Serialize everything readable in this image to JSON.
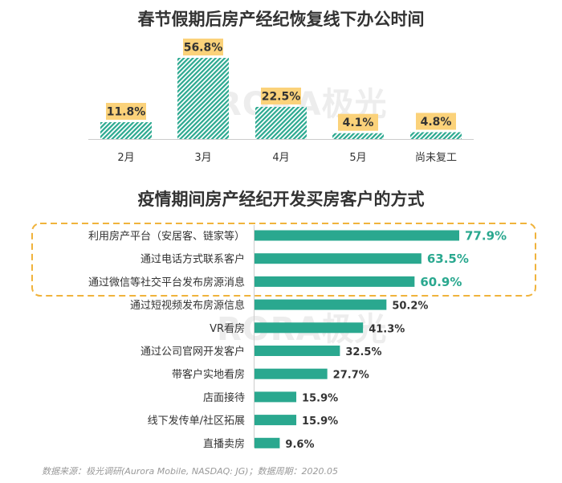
{
  "chart_data": [
    {
      "type": "bar",
      "title": "春节假期后房产经纪恢复线下办公时间",
      "categories": [
        "2月",
        "3月",
        "4月",
        "5月",
        "尚未复工"
      ],
      "values": [
        11.8,
        56.8,
        22.5,
        4.1,
        4.8
      ],
      "value_labels": [
        "11.8%",
        "56.8%",
        "22.5%",
        "4.1%",
        "4.8%"
      ],
      "colors": {
        "bar": "#2aa88f",
        "label_bg": "#fbd27a"
      }
    },
    {
      "type": "bar",
      "orientation": "horizontal",
      "title": "疫情期间房产经纪开发买房客户的方式",
      "categories": [
        "利用房产平台（安居客、链家等）",
        "通过电话方式联系客户",
        "通过微信等社交平台发布房源消息",
        "通过短视频发布房源信息",
        "VR看房",
        "通过公司官网开发客户",
        "带客户实地看房",
        "店面接待",
        "线下发传单/社区拓展",
        "直播卖房"
      ],
      "values": [
        77.9,
        63.5,
        60.9,
        50.2,
        41.3,
        32.5,
        27.7,
        15.9,
        15.9,
        9.6
      ],
      "value_labels": [
        "77.9%",
        "63.5%",
        "60.9%",
        "50.2%",
        "41.3%",
        "32.5%",
        "27.7%",
        "15.9%",
        "15.9%",
        "9.6%"
      ],
      "highlighted_count": 3,
      "colors": {
        "bar": "#2aa88f",
        "highlight_text": "#2aa88f",
        "highlight_box": "#f0b33c"
      }
    }
  ],
  "watermark": "RORA极光",
  "source_text": "数据来源：极光调研(Aurora Mobile, NASDAQ: JG)；数据周期：2020.05"
}
